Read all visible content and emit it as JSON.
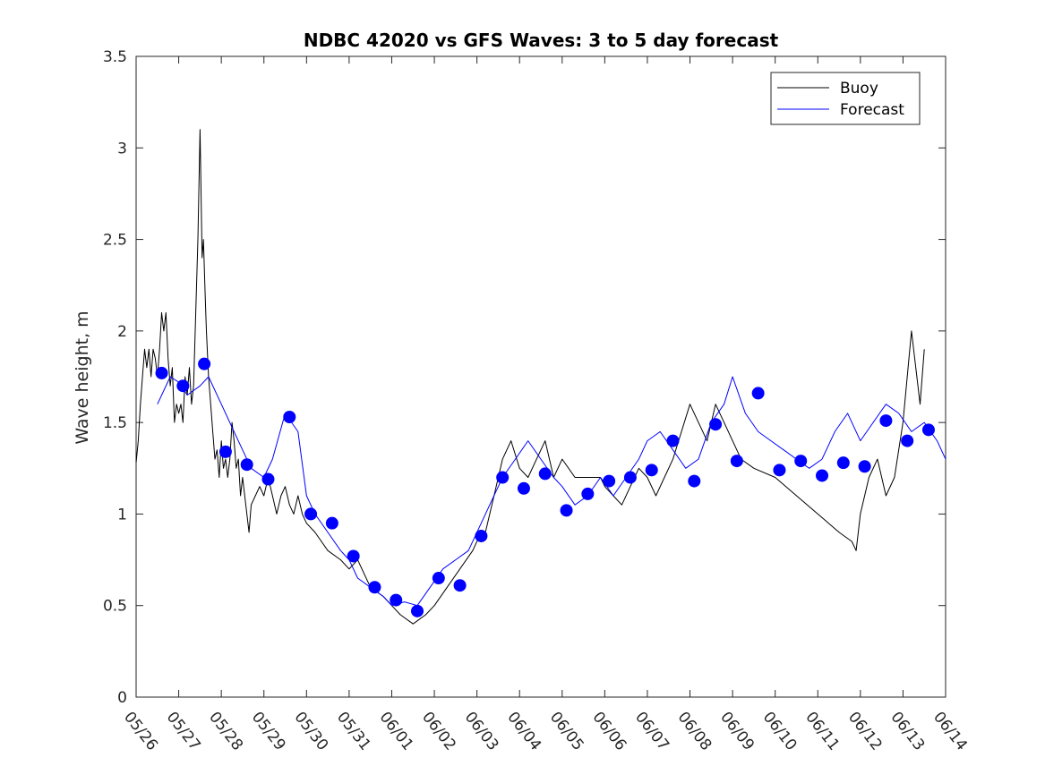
{
  "chart_data": {
    "type": "line",
    "title": "NDBC 42020 vs GFS Waves: 3 to 5 day forecast",
    "xlabel": "",
    "ylabel": "Wave height, m",
    "xlim": [
      0,
      19
    ],
    "ylim": [
      0,
      3.5
    ],
    "x_tick_labels": [
      "05/26",
      "05/27",
      "05/28",
      "05/29",
      "05/30",
      "05/31",
      "06/01",
      "06/02",
      "06/03",
      "06/04",
      "06/05",
      "06/06",
      "06/07",
      "06/08",
      "06/09",
      "06/10",
      "06/11",
      "06/12",
      "06/13",
      "06/14"
    ],
    "y_ticks": [
      0,
      0.5,
      1,
      1.5,
      2,
      2.5,
      3,
      3.5
    ],
    "y_tick_labels": [
      "0",
      "0.5",
      "1",
      "1.5",
      "2",
      "2.5",
      "3",
      "3.5"
    ],
    "grid": false,
    "legend_position": "top-right",
    "x_unit": "days since 05/26",
    "series": [
      {
        "name": "Buoy",
        "color": "#000000",
        "x": [
          0,
          0.05,
          0.1,
          0.15,
          0.2,
          0.25,
          0.3,
          0.35,
          0.4,
          0.45,
          0.5,
          0.55,
          0.6,
          0.65,
          0.7,
          0.75,
          0.8,
          0.85,
          0.9,
          0.95,
          1.0,
          1.05,
          1.1,
          1.15,
          1.2,
          1.25,
          1.3,
          1.35,
          1.4,
          1.45,
          1.5,
          1.55,
          1.58,
          1.62,
          1.65,
          1.7,
          1.75,
          1.8,
          1.85,
          1.9,
          1.95,
          2.0,
          2.05,
          2.1,
          2.15,
          2.2,
          2.25,
          2.3,
          2.35,
          2.4,
          2.45,
          2.5,
          2.55,
          2.6,
          2.65,
          2.7,
          2.8,
          2.9,
          3.0,
          3.1,
          3.2,
          3.3,
          3.4,
          3.5,
          3.6,
          3.7,
          3.8,
          3.9,
          4.0,
          4.2,
          4.5,
          4.8,
          5.0,
          5.2,
          5.5,
          5.8,
          6.0,
          6.2,
          6.5,
          6.8,
          7.0,
          7.3,
          7.6,
          7.9,
          8.0,
          8.2,
          8.4,
          8.6,
          8.8,
          9.0,
          9.2,
          9.4,
          9.6,
          9.8,
          10.0,
          10.3,
          10.6,
          10.9,
          11.0,
          11.2,
          11.4,
          11.6,
          11.8,
          12.0,
          12.2,
          12.4,
          12.6,
          12.8,
          13.0,
          13.2,
          13.4,
          13.6,
          13.8,
          14.0,
          14.2,
          14.5,
          15.0,
          15.5,
          16.0,
          16.5,
          16.8,
          16.9,
          17.0,
          17.2,
          17.4,
          17.6,
          17.8,
          18.0,
          18.2,
          18.4,
          18.5
        ],
        "y": [
          1.28,
          1.4,
          1.6,
          1.75,
          1.9,
          1.8,
          1.9,
          1.75,
          1.9,
          1.85,
          1.75,
          1.9,
          2.1,
          2.0,
          2.1,
          1.85,
          1.7,
          1.8,
          1.5,
          1.6,
          1.55,
          1.6,
          1.5,
          1.75,
          1.65,
          1.8,
          1.6,
          1.7,
          2.1,
          2.5,
          3.1,
          2.4,
          2.5,
          2.2,
          2.0,
          1.75,
          1.6,
          1.45,
          1.3,
          1.35,
          1.2,
          1.4,
          1.25,
          1.3,
          1.2,
          1.3,
          1.5,
          1.4,
          1.25,
          1.3,
          1.1,
          1.2,
          1.1,
          1.0,
          0.9,
          1.05,
          1.1,
          1.15,
          1.1,
          1.2,
          1.1,
          1.0,
          1.1,
          1.15,
          1.05,
          1.0,
          1.1,
          1.0,
          0.95,
          0.9,
          0.8,
          0.75,
          0.7,
          0.75,
          0.6,
          0.55,
          0.5,
          0.45,
          0.4,
          0.45,
          0.5,
          0.6,
          0.7,
          0.8,
          0.85,
          0.9,
          1.1,
          1.3,
          1.4,
          1.25,
          1.2,
          1.3,
          1.4,
          1.2,
          1.3,
          1.2,
          1.2,
          1.2,
          1.15,
          1.1,
          1.05,
          1.15,
          1.25,
          1.2,
          1.1,
          1.2,
          1.3,
          1.45,
          1.6,
          1.5,
          1.4,
          1.6,
          1.5,
          1.4,
          1.3,
          1.25,
          1.2,
          1.1,
          1.0,
          0.9,
          0.85,
          0.8,
          1.0,
          1.2,
          1.3,
          1.1,
          1.2,
          1.5,
          2.0,
          1.6,
          1.9
        ]
      },
      {
        "name": "Forecast",
        "color": "#0000ff",
        "x": [
          0.5,
          0.8,
          1.0,
          1.2,
          1.5,
          1.7,
          2.0,
          2.3,
          2.5,
          2.7,
          3.0,
          3.2,
          3.5,
          3.8,
          4.0,
          4.2,
          4.5,
          4.8,
          5.0,
          5.2,
          5.5,
          5.8,
          6.0,
          6.3,
          6.6,
          6.9,
          7.2,
          7.5,
          7.8,
          8.0,
          8.3,
          8.6,
          8.9,
          9.2,
          9.5,
          9.8,
          10.0,
          10.3,
          10.6,
          10.9,
          11.2,
          11.5,
          11.8,
          12.0,
          12.3,
          12.6,
          12.9,
          13.2,
          13.5,
          13.8,
          14.0,
          14.3,
          14.6,
          14.9,
          15.2,
          15.5,
          15.8,
          16.1,
          16.4,
          16.7,
          17.0,
          17.3,
          17.6,
          17.9,
          18.2,
          18.5,
          18.8,
          19.0
        ],
        "y": [
          1.6,
          1.75,
          1.72,
          1.65,
          1.7,
          1.75,
          1.6,
          1.45,
          1.35,
          1.25,
          1.2,
          1.3,
          1.55,
          1.45,
          1.1,
          1.0,
          0.9,
          0.8,
          0.75,
          0.65,
          0.6,
          0.55,
          0.5,
          0.52,
          0.5,
          0.6,
          0.7,
          0.75,
          0.8,
          0.9,
          1.05,
          1.2,
          1.3,
          1.4,
          1.3,
          1.2,
          1.15,
          1.05,
          1.1,
          1.2,
          1.1,
          1.2,
          1.3,
          1.4,
          1.45,
          1.35,
          1.25,
          1.3,
          1.5,
          1.6,
          1.75,
          1.55,
          1.45,
          1.4,
          1.35,
          1.3,
          1.25,
          1.3,
          1.45,
          1.55,
          1.4,
          1.5,
          1.6,
          1.55,
          1.45,
          1.5,
          1.4,
          1.3
        ]
      }
    ],
    "forecast_points": {
      "color": "#0000ff",
      "x": [
        0.6,
        1.1,
        1.6,
        2.1,
        2.6,
        3.1,
        3.6,
        4.1,
        4.6,
        5.1,
        5.6,
        6.1,
        6.6,
        7.1,
        7.6,
        8.1,
        8.6,
        9.1,
        9.6,
        10.1,
        10.6,
        11.1,
        11.6,
        12.1,
        12.6,
        13.1,
        13.6,
        14.1,
        14.6,
        15.1,
        15.6,
        16.1,
        16.6,
        17.1,
        17.6,
        18.1,
        18.6
      ],
      "y": [
        1.77,
        1.7,
        1.82,
        1.34,
        1.27,
        1.19,
        1.53,
        1.0,
        0.95,
        0.77,
        0.6,
        0.53,
        0.47,
        0.65,
        0.61,
        0.88,
        1.2,
        1.14,
        1.22,
        1.02,
        1.11,
        1.18,
        1.2,
        1.24,
        1.4,
        1.18,
        1.49,
        1.29,
        1.66,
        1.24,
        1.29,
        1.21,
        1.28,
        1.26,
        1.51,
        1.4,
        1.46
      ]
    }
  },
  "legend": {
    "items": [
      {
        "label": "Buoy",
        "color": "#000000"
      },
      {
        "label": "Forecast",
        "color": "#0000ff"
      }
    ]
  }
}
